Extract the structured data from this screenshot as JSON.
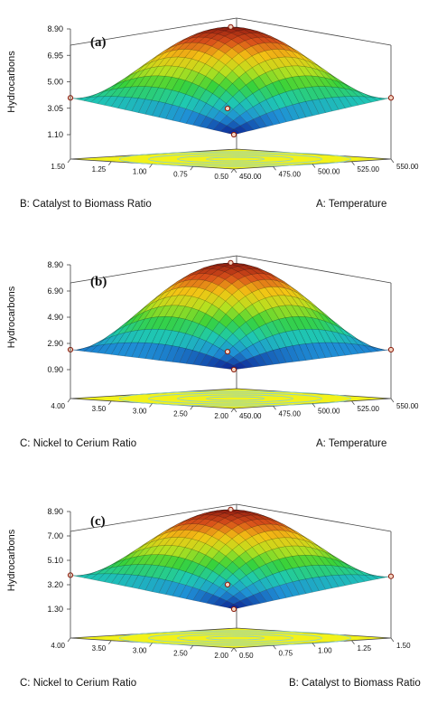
{
  "chart_data": [
    {
      "type": "surface3d",
      "panel_label": "(a)",
      "zlabel": "Hydrocarbons",
      "z_ticks": [
        "1.10",
        "3.05",
        "5.00",
        "6.95",
        "8.90"
      ],
      "zlim": [
        1.1,
        8.9
      ],
      "x_axis": {
        "label": "A: Temperature",
        "ticks": [
          "450.00",
          "475.00",
          "500.00",
          "525.00",
          "550.00"
        ],
        "range": [
          450,
          550
        ]
      },
      "y_axis": {
        "label": "B: Catalyst to Biomass Ratio",
        "ticks": [
          "0.50",
          "0.75",
          "1.00",
          "1.25",
          "1.50"
        ],
        "range": [
          0.5,
          1.5
        ]
      },
      "surface": {
        "center_value": 8.9,
        "corner_values": [
          1.1,
          3.3,
          3.3,
          1.8
        ]
      },
      "design_points": [
        {
          "x": 500,
          "y": 1.0,
          "z": 8.9
        },
        {
          "x": 450,
          "y": 0.5,
          "z": 1.1
        },
        {
          "x": 550,
          "y": 1.5,
          "z": 1.1
        },
        {
          "x": 450,
          "y": 1.5,
          "z": 3.0
        },
        {
          "x": 550,
          "y": 0.5,
          "z": 3.0
        }
      ],
      "colormap": [
        "#0b1d8f",
        "#1f8fd6",
        "#1fc9b0",
        "#38d23a",
        "#b8e01f",
        "#f3c414",
        "#d9501a",
        "#8f1a0f"
      ]
    },
    {
      "type": "surface3d",
      "panel_label": "(b)",
      "zlabel": "Hydrocarbons",
      "z_ticks": [
        "0.90",
        "2.90",
        "4.90",
        "6.90",
        "8.90"
      ],
      "zlim": [
        0.9,
        8.9
      ],
      "x_axis": {
        "label": "A: Temperature",
        "ticks": [
          "450.00",
          "475.00",
          "500.00",
          "525.00",
          "550.00"
        ],
        "range": [
          450,
          550
        ]
      },
      "y_axis": {
        "label": "C: Nickel to Cerium Ratio",
        "ticks": [
          "2.00",
          "2.50",
          "3.00",
          "3.50",
          "4.00"
        ],
        "range": [
          2.0,
          4.0
        ]
      },
      "surface": {
        "center_value": 8.9,
        "corner_values": [
          0.9,
          1.8,
          1.8,
          0.9
        ]
      },
      "design_points": [
        {
          "x": 500,
          "y": 3.0,
          "z": 8.9
        },
        {
          "x": 450,
          "y": 2.0,
          "z": 0.9
        },
        {
          "x": 550,
          "y": 4.0,
          "z": 0.9
        },
        {
          "x": 450,
          "y": 4.0,
          "z": 1.8
        },
        {
          "x": 550,
          "y": 2.0,
          "z": 1.8
        }
      ],
      "colormap": [
        "#0b1d8f",
        "#1f8fd6",
        "#1fc9b0",
        "#38d23a",
        "#b8e01f",
        "#f3c414",
        "#d9501a",
        "#8f1a0f"
      ]
    },
    {
      "type": "surface3d",
      "panel_label": "(c)",
      "zlabel": "Hydrocarbons",
      "z_ticks": [
        "1.30",
        "3.20",
        "5.10",
        "7.00",
        "8.90"
      ],
      "zlim": [
        1.3,
        8.9
      ],
      "x_axis": {
        "label": "B: Catalyst to Biomass Ratio",
        "ticks": [
          "0.50",
          "0.75",
          "1.00",
          "1.25",
          "1.50"
        ],
        "range": [
          0.5,
          1.5
        ]
      },
      "y_axis": {
        "label": "C: Nickel to Cerium Ratio",
        "ticks": [
          "2.00",
          "2.50",
          "3.00",
          "3.50",
          "4.00"
        ],
        "range": [
          2.0,
          4.0
        ]
      },
      "surface": {
        "center_value": 8.9,
        "corner_values": [
          1.3,
          3.3,
          3.4,
          1.9
        ]
      },
      "design_points": [
        {
          "x": 1.0,
          "y": 3.0,
          "z": 8.9
        },
        {
          "x": 0.5,
          "y": 2.0,
          "z": 1.3
        },
        {
          "x": 1.5,
          "y": 4.0,
          "z": 1.3
        },
        {
          "x": 0.5,
          "y": 4.0,
          "z": 3.3
        },
        {
          "x": 1.5,
          "y": 2.0,
          "z": 3.3
        }
      ],
      "colormap": [
        "#0b1d8f",
        "#1f8fd6",
        "#1fc9b0",
        "#38d23a",
        "#b8e01f",
        "#f3c414",
        "#d9501a",
        "#8f1a0f"
      ]
    }
  ]
}
